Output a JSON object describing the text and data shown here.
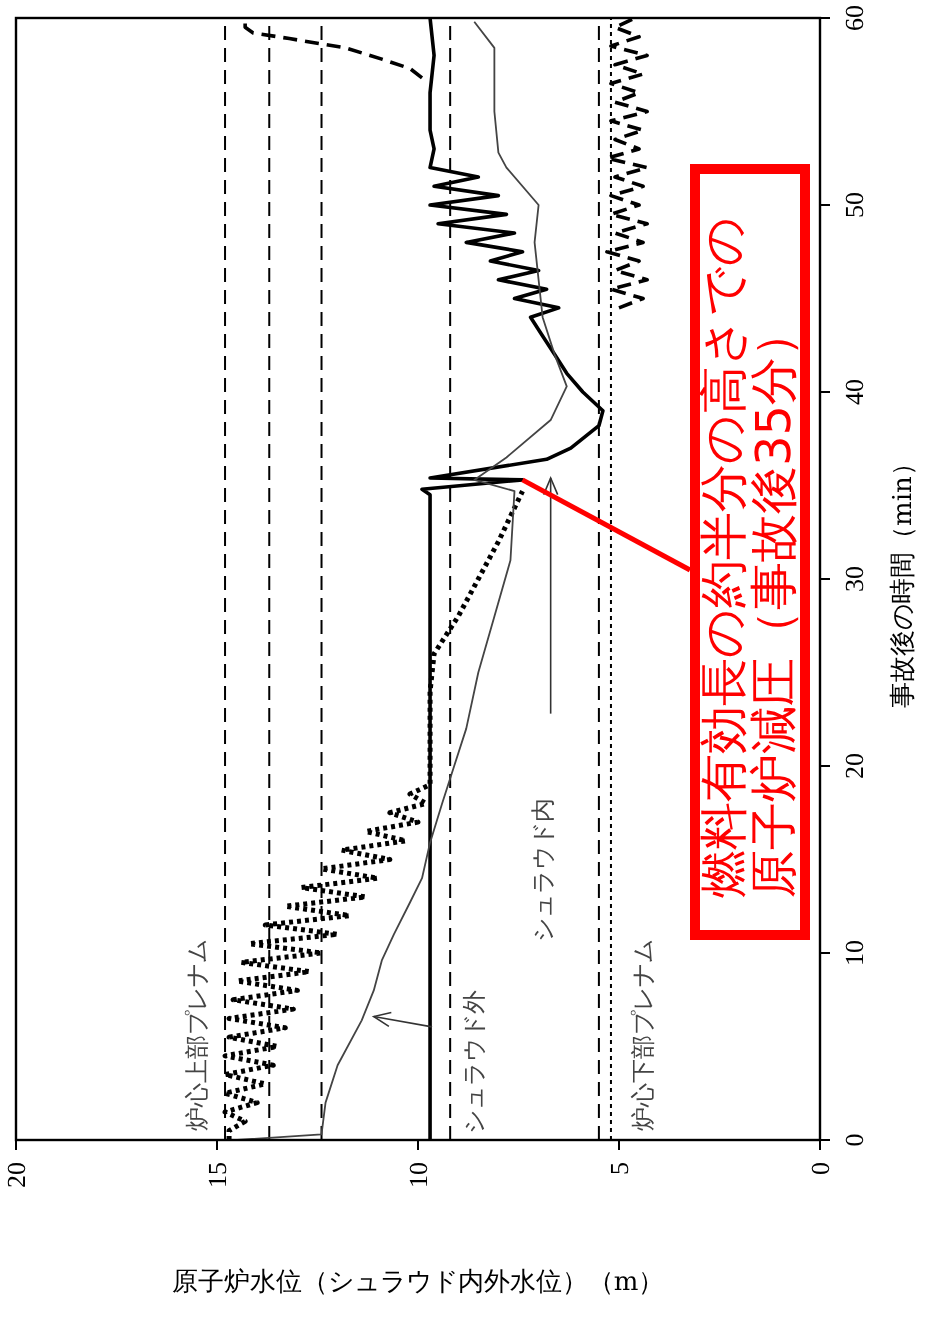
{
  "chart_data": {
    "type": "line",
    "xlabel": "原子炉水位（シュラウド内外水位）（m）",
    "ylabel": "事故後の時間（min）",
    "xlim": [
      20,
      0
    ],
    "xticks": [
      20,
      15,
      10,
      5,
      0
    ],
    "ylim": [
      0,
      60
    ],
    "yticks": [
      0,
      10,
      20,
      30,
      40,
      50,
      60
    ],
    "marker": "none",
    "series": [
      {
        "color": "#000000",
        "line_style": "dotted",
        "values": [
          0,
          0.5,
          1,
          1.5,
          2,
          2.5,
          3,
          3.5,
          4,
          4.5,
          5,
          5.5,
          6,
          6.5,
          7,
          7.5,
          8,
          8.5,
          9,
          9.5,
          10,
          10.5,
          11,
          11.5,
          12,
          12.5,
          13,
          13.5,
          14,
          14.5,
          15,
          15.5,
          16,
          16.5,
          17,
          17.5,
          18,
          18.5,
          19,
          20,
          24,
          26,
          28,
          30,
          32,
          34.7
        ],
        "x": [
          14.7,
          14.7,
          14.3,
          14.8,
          14.0,
          14.8,
          13.8,
          14.8,
          13.6,
          14.8,
          13.5,
          14.7,
          13.3,
          14.7,
          13.1,
          14.6,
          13.0,
          14.5,
          12.7,
          14.4,
          12.4,
          14.2,
          12.0,
          13.8,
          11.7,
          13.3,
          11.3,
          12.9,
          11.0,
          12.4,
          10.7,
          11.9,
          10.3,
          11.3,
          10.0,
          10.7,
          9.8,
          10.2,
          9.7,
          9.7,
          9.7,
          9.6,
          9.0,
          8.5,
          8.0,
          7.4
        ]
      },
      {
        "color": "#000000",
        "line_style": "solid",
        "values": [
          0,
          34.5,
          34.8,
          35.3,
          35.4,
          36.4,
          37,
          38.2,
          39,
          40,
          41,
          42,
          43,
          44,
          44.5,
          45,
          45.5,
          46,
          46.5,
          47,
          47.5,
          48,
          48.5,
          49,
          49.5,
          50,
          50.5,
          51,
          51.5,
          52,
          53,
          54,
          56,
          58,
          60
        ],
        "x": [
          9.7,
          9.7,
          9.9,
          7.4,
          9.7,
          6.8,
          6.2,
          5.5,
          5.4,
          5.9,
          6.3,
          6.6,
          6.9,
          7.2,
          6.5,
          7.6,
          6.8,
          8.0,
          7.0,
          8.2,
          7.4,
          8.8,
          7.6,
          9.5,
          7.8,
          9.7,
          8.0,
          9.6,
          8.5,
          9.7,
          9.6,
          9.7,
          9.7,
          9.6,
          9.7
        ]
      },
      {
        "color": "#444444",
        "line_style": "solid",
        "values": [
          0,
          0.3,
          2,
          4,
          6.4,
          8,
          9.6,
          11,
          12.7,
          14,
          15.9,
          18,
          20,
          22,
          25,
          28,
          31,
          34.7,
          35.3,
          36.5,
          38.5,
          40.3,
          42,
          44,
          46,
          48,
          50,
          52,
          52.8,
          55,
          57,
          58.4,
          59.8
        ],
        "x": [
          14.5,
          12.4,
          12.3,
          12.0,
          11.4,
          11.1,
          10.9,
          10.6,
          10.2,
          9.9,
          9.7,
          9.4,
          9.1,
          8.8,
          8.5,
          8.1,
          7.7,
          7.6,
          8.6,
          7.8,
          6.7,
          6.3,
          6.6,
          6.9,
          7.0,
          7.1,
          7.0,
          7.8,
          8.0,
          8.1,
          8.1,
          8.1,
          8.6
        ]
      },
      {
        "color": "#000000",
        "line_style": "dashed",
        "values": [
          44.5,
          45,
          45.5,
          46,
          46.5,
          47,
          47.5,
          48,
          48.5,
          49,
          49.5,
          50,
          50.5,
          51,
          51.5,
          52,
          52.5,
          53,
          53.5,
          54,
          54.5,
          55,
          55.5,
          56,
          56.5,
          57,
          57.5,
          58,
          58.5,
          59,
          59.5,
          60
        ],
        "x": [
          5.0,
          4.4,
          5.2,
          4.3,
          5.1,
          4.5,
          5.3,
          4.4,
          5.1,
          4.3,
          5.2,
          4.5,
          5.2,
          4.4,
          5.1,
          4.3,
          5.3,
          4.5,
          5.1,
          4.4,
          5.2,
          4.3,
          5.1,
          4.5,
          5.2,
          4.4,
          5.1,
          4.3,
          5.2,
          4.5,
          5.1,
          4.6
        ]
      },
      {
        "color": "#000000",
        "line_style": "dashed",
        "values": [
          56.8,
          57.3,
          57.8,
          58.4,
          58.9,
          59.2,
          59.5,
          60
        ],
        "x": [
          9.9,
          10.2,
          10.9,
          11.8,
          13.2,
          14.1,
          14.3,
          14.3
        ]
      }
    ],
    "ref_lines": [
      {
        "axis": "x",
        "value": 14.8,
        "line_style": "dashed",
        "color": "#000000"
      },
      {
        "axis": "x",
        "value": 13.7,
        "line_style": "dashed",
        "color": "#000000"
      },
      {
        "axis": "x",
        "value": 12.4,
        "line_style": "dashed",
        "color": "#000000"
      },
      {
        "axis": "x",
        "value": 9.2,
        "line_style": "dashed",
        "color": "#000000"
      },
      {
        "axis": "x",
        "value": 5.5,
        "line_style": "dashed",
        "color": "#000000"
      },
      {
        "axis": "x",
        "value": 5.2,
        "line_style": "dotted",
        "color": "#000000"
      }
    ],
    "annotations": [
      "炉心上部プレナム",
      "シュラウド外",
      "シュラウド内",
      "炉心下部プレナム",
      {
        "text": "燃料有効長の約半分の高さでの原子炉減圧（事故後35分）",
        "x": 7.4,
        "y": 35.3
      }
    ]
  }
}
